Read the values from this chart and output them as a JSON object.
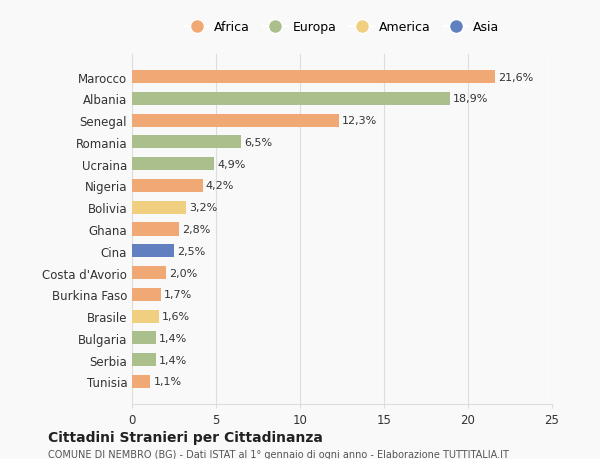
{
  "countries": [
    "Marocco",
    "Albania",
    "Senegal",
    "Romania",
    "Ucraina",
    "Nigeria",
    "Bolivia",
    "Ghana",
    "Cina",
    "Costa d'Avorio",
    "Burkina Faso",
    "Brasile",
    "Bulgaria",
    "Serbia",
    "Tunisia"
  ],
  "values": [
    21.6,
    18.9,
    12.3,
    6.5,
    4.9,
    4.2,
    3.2,
    2.8,
    2.5,
    2.0,
    1.7,
    1.6,
    1.4,
    1.4,
    1.1
  ],
  "labels": [
    "21,6%",
    "18,9%",
    "12,3%",
    "6,5%",
    "4,9%",
    "4,2%",
    "3,2%",
    "2,8%",
    "2,5%",
    "2,0%",
    "1,7%",
    "1,6%",
    "1,4%",
    "1,4%",
    "1,1%"
  ],
  "continents": [
    "Africa",
    "Europa",
    "Africa",
    "Europa",
    "Europa",
    "Africa",
    "America",
    "Africa",
    "Asia",
    "Africa",
    "Africa",
    "America",
    "Europa",
    "Europa",
    "Africa"
  ],
  "colors": {
    "Africa": "#F0A875",
    "Europa": "#AABF8C",
    "America": "#F0D080",
    "Asia": "#6080C0"
  },
  "legend_order": [
    "Africa",
    "Europa",
    "America",
    "Asia"
  ],
  "title": "Cittadini Stranieri per Cittadinanza",
  "subtitle": "COMUNE DI NEMBRO (BG) - Dati ISTAT al 1° gennaio di ogni anno - Elaborazione TUTTITALIA.IT",
  "xlim": [
    0,
    25
  ],
  "xticks": [
    0,
    5,
    10,
    15,
    20,
    25
  ],
  "background_color": "#f9f9f9",
  "grid_color": "#dddddd"
}
